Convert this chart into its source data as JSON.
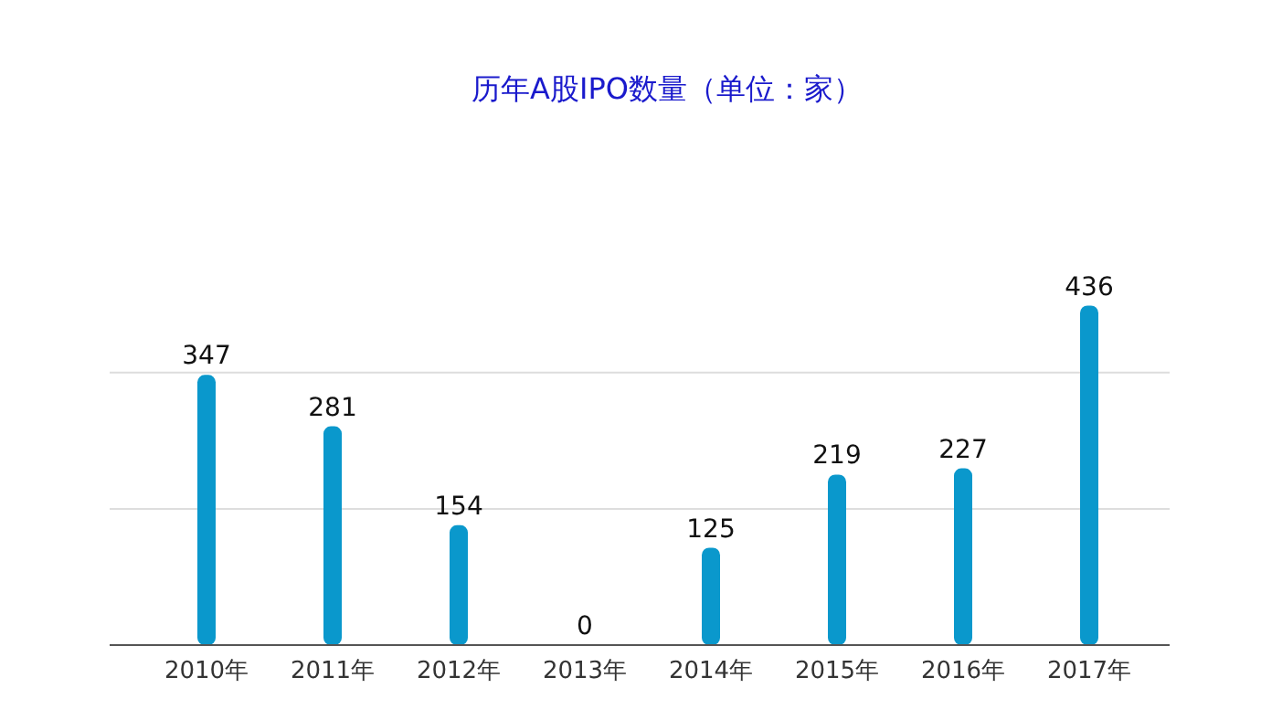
{
  "chart_data": {
    "type": "bar",
    "title": "历年A股IPO数量（单位：家）",
    "categories": [
      "2010年",
      "2011年",
      "2012年",
      "2013年",
      "2014年",
      "2015年",
      "2016年",
      "2017年"
    ],
    "values": [
      347,
      281,
      154,
      0,
      125,
      219,
      227,
      436
    ],
    "color": "#0a98cc",
    "data_labels": true,
    "ref_lines": [
      {
        "axis": "y",
        "value": 175,
        "color": "#dddddd"
      },
      {
        "axis": "y",
        "value": 350,
        "color": "#dddddd"
      }
    ]
  }
}
